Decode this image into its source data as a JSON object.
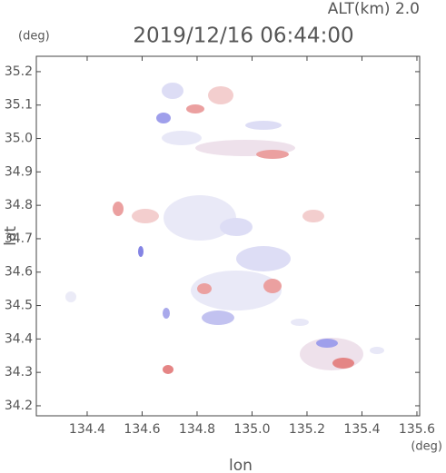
{
  "chart_data": {
    "type": "map",
    "title": "2019/12/16 06:44:00",
    "subtitle": "ALT(km) 2.0",
    "x_label": "lon",
    "x_unit": "(deg)",
    "y_label": "lat",
    "y_unit": "(deg)",
    "xlim": [
      134.215,
      135.61
    ],
    "xticks": [
      134.4,
      134.6,
      134.8,
      {
        "value": 135,
        "label": "135.0"
      },
      135.2,
      135.4,
      135.6
    ],
    "ylim": [
      34.17,
      35.246
    ],
    "yticks": [
      34.2,
      34.3,
      34.4,
      34.5,
      34.6,
      34.7,
      34.8,
      34.9,
      {
        "value": 35,
        "label": "35.0"
      },
      35.1,
      35.2
    ]
  }
}
